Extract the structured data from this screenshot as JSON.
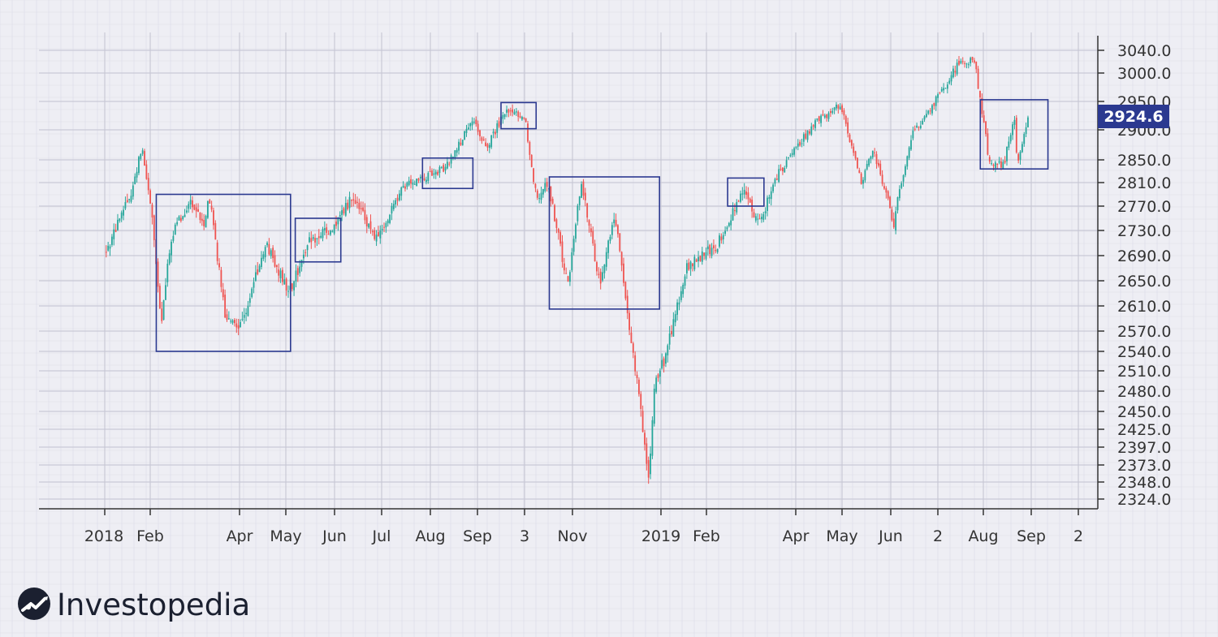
{
  "chart_data": {
    "type": "candlestick",
    "title": "",
    "xlabel": "",
    "ylabel": "",
    "x_tick_labels": [
      "2018",
      "Feb",
      "Apr",
      "May",
      "Jun",
      "Jul",
      "Aug",
      "Sep",
      "3",
      "Nov",
      "2019",
      "Feb",
      "Apr",
      "May",
      "Jun",
      "2",
      "Aug",
      "Sep",
      "2"
    ],
    "y_tick_labels": [
      "3040.0",
      "3000.0",
      "2950.0",
      "2900.0",
      "2850.0",
      "2810.0",
      "2770.0",
      "2730.0",
      "2690.0",
      "2650.0",
      "2610.0",
      "2570.0",
      "2540.0",
      "2510.0",
      "2480.0",
      "2450.0",
      "2425.0",
      "2397.0",
      "2373.0",
      "2348.0",
      "2324.0"
    ],
    "current_price": "2924.6",
    "grid": true,
    "colors": {
      "up": "#26a69a",
      "down": "#ef5350",
      "box": "#2b3990",
      "price_badge": "#2b3990",
      "axis": "#333333",
      "grid": "#c9c9d6"
    },
    "price_path": [
      [
        "2018-01-02",
        2695
      ],
      [
        "2018-01-10",
        2740
      ],
      [
        "2018-01-20",
        2800
      ],
      [
        "2018-01-26",
        2872
      ],
      [
        "2018-02-02",
        2760
      ],
      [
        "2018-02-08",
        2581
      ],
      [
        "2018-02-15",
        2720
      ],
      [
        "2018-02-27",
        2780
      ],
      [
        "2018-03-08",
        2740
      ],
      [
        "2018-03-12",
        2786
      ],
      [
        "2018-03-23",
        2588
      ],
      [
        "2018-04-02",
        2581
      ],
      [
        "2018-04-18",
        2708
      ],
      [
        "2018-05-03",
        2629
      ],
      [
        "2018-05-15",
        2712
      ],
      [
        "2018-06-01",
        2734
      ],
      [
        "2018-06-12",
        2786
      ],
      [
        "2018-06-28",
        2716
      ],
      [
        "2018-07-17",
        2810
      ],
      [
        "2018-07-27",
        2818
      ],
      [
        "2018-08-10",
        2834
      ],
      [
        "2018-08-29",
        2914
      ],
      [
        "2018-09-07",
        2872
      ],
      [
        "2018-09-20",
        2930
      ],
      [
        "2018-10-03",
        2925
      ],
      [
        "2018-10-10",
        2785
      ],
      [
        "2018-10-17",
        2810
      ],
      [
        "2018-10-29",
        2641
      ],
      [
        "2018-11-07",
        2813
      ],
      [
        "2018-11-20",
        2641
      ],
      [
        "2018-11-30",
        2760
      ],
      [
        "2018-12-07",
        2633
      ],
      [
        "2018-12-24",
        2351
      ],
      [
        "2018-12-27",
        2488
      ],
      [
        "2019-01-04",
        2531
      ],
      [
        "2019-01-18",
        2670
      ],
      [
        "2019-02-08",
        2706
      ],
      [
        "2019-02-25",
        2796
      ],
      [
        "2019-03-08",
        2743
      ],
      [
        "2019-03-20",
        2824
      ],
      [
        "2019-04-12",
        2907
      ],
      [
        "2019-04-30",
        2945
      ],
      [
        "2019-05-13",
        2812
      ],
      [
        "2019-05-21",
        2864
      ],
      [
        "2019-06-03",
        2744
      ],
      [
        "2019-06-14",
        2886
      ],
      [
        "2019-06-28",
        2941
      ],
      [
        "2019-07-15",
        3014
      ],
      [
        "2019-07-26",
        3025
      ],
      [
        "2019-08-05",
        2844
      ],
      [
        "2019-08-14",
        2840
      ],
      [
        "2019-08-21",
        2924
      ],
      [
        "2019-08-23",
        2847
      ],
      [
        "2019-08-30",
        2926
      ]
    ],
    "highlight_boxes": [
      {
        "from": "2018-02-05",
        "to": "2018-05-04",
        "low": 2540,
        "high": 2790
      },
      {
        "from": "2018-05-07",
        "to": "2018-06-05",
        "low": 2680,
        "high": 2750
      },
      {
        "from": "2018-07-27",
        "to": "2018-08-29",
        "low": 2800,
        "high": 2853
      },
      {
        "from": "2018-09-17",
        "to": "2018-10-10",
        "low": 2902,
        "high": 2948
      },
      {
        "from": "2018-10-18",
        "to": "2018-12-31",
        "low": 2605,
        "high": 2820
      },
      {
        "from": "2019-02-15",
        "to": "2019-03-11",
        "low": 2770,
        "high": 2818
      },
      {
        "from": "2019-07-30",
        "to": "2019-09-12",
        "low": 2834,
        "high": 2953
      }
    ]
  },
  "brand": {
    "name": "Investopedia",
    "logo_icon": "investopedia-logo-icon"
  }
}
